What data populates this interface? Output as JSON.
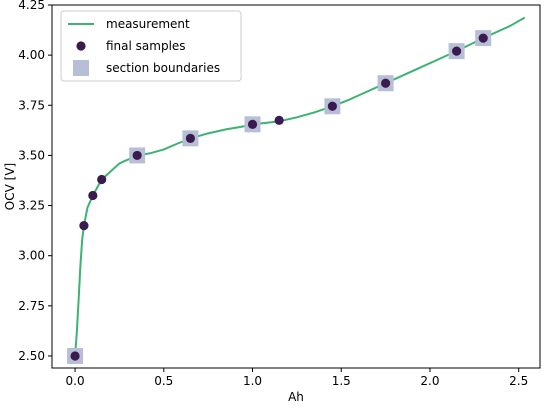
{
  "chart_data": {
    "type": "line",
    "title": "",
    "xlabel": "Ah",
    "ylabel": "OCV [V]",
    "xlim": [
      -0.13,
      2.62
    ],
    "ylim": [
      2.44,
      4.25
    ],
    "x_ticks": [
      0.0,
      0.5,
      1.0,
      1.5,
      2.0,
      2.5
    ],
    "x_tick_labels": [
      "0.0",
      "0.5",
      "1.0",
      "1.5",
      "2.0",
      "2.5"
    ],
    "y_ticks": [
      2.5,
      2.75,
      3.0,
      3.25,
      3.5,
      3.75,
      4.0,
      4.25
    ],
    "y_tick_labels": [
      "2.50",
      "2.75",
      "3.00",
      "3.25",
      "3.50",
      "3.75",
      "4.00",
      "4.25"
    ],
    "grid": false,
    "legend_position": "top-left",
    "legend": [
      {
        "label": "measurement",
        "kind": "line"
      },
      {
        "label": "final samples",
        "kind": "dot"
      },
      {
        "label": "section boundaries",
        "kind": "square"
      }
    ],
    "colors": {
      "measurement": "#3cb371",
      "final_samples": "#3b1a4f",
      "section_boundaries": "#b7bfd6"
    },
    "series": [
      {
        "name": "measurement",
        "style": "line",
        "x": [
          0.0,
          0.01,
          0.02,
          0.03,
          0.04,
          0.05,
          0.07,
          0.1,
          0.15,
          0.2,
          0.25,
          0.3,
          0.35,
          0.42,
          0.5,
          0.58,
          0.65,
          0.75,
          0.85,
          0.95,
          1.0,
          1.05,
          1.15,
          1.25,
          1.35,
          1.45,
          1.55,
          1.65,
          1.75,
          1.85,
          1.95,
          2.05,
          2.15,
          2.3,
          2.45,
          2.53
        ],
        "y": [
          2.5,
          2.62,
          2.78,
          2.95,
          3.08,
          3.15,
          3.24,
          3.3,
          3.38,
          3.42,
          3.46,
          3.48,
          3.5,
          3.51,
          3.53,
          3.56,
          3.585,
          3.61,
          3.63,
          3.645,
          3.655,
          3.66,
          3.67,
          3.69,
          3.715,
          3.745,
          3.78,
          3.82,
          3.86,
          3.9,
          3.94,
          3.98,
          4.02,
          4.085,
          4.145,
          4.185
        ]
      },
      {
        "name": "section boundaries",
        "style": "square",
        "x": [
          0.0,
          0.35,
          0.65,
          1.0,
          1.45,
          1.75,
          2.15,
          2.3
        ],
        "y": [
          2.5,
          3.5,
          3.585,
          3.655,
          3.745,
          3.86,
          4.02,
          4.085
        ]
      },
      {
        "name": "final samples",
        "style": "dot",
        "x": [
          0.0,
          0.05,
          0.1,
          0.15,
          0.35,
          0.65,
          1.0,
          1.15,
          1.45,
          1.75,
          2.15,
          2.3
        ],
        "y": [
          2.5,
          3.15,
          3.3,
          3.38,
          3.5,
          3.585,
          3.655,
          3.675,
          3.745,
          3.86,
          4.02,
          4.085
        ]
      }
    ]
  }
}
